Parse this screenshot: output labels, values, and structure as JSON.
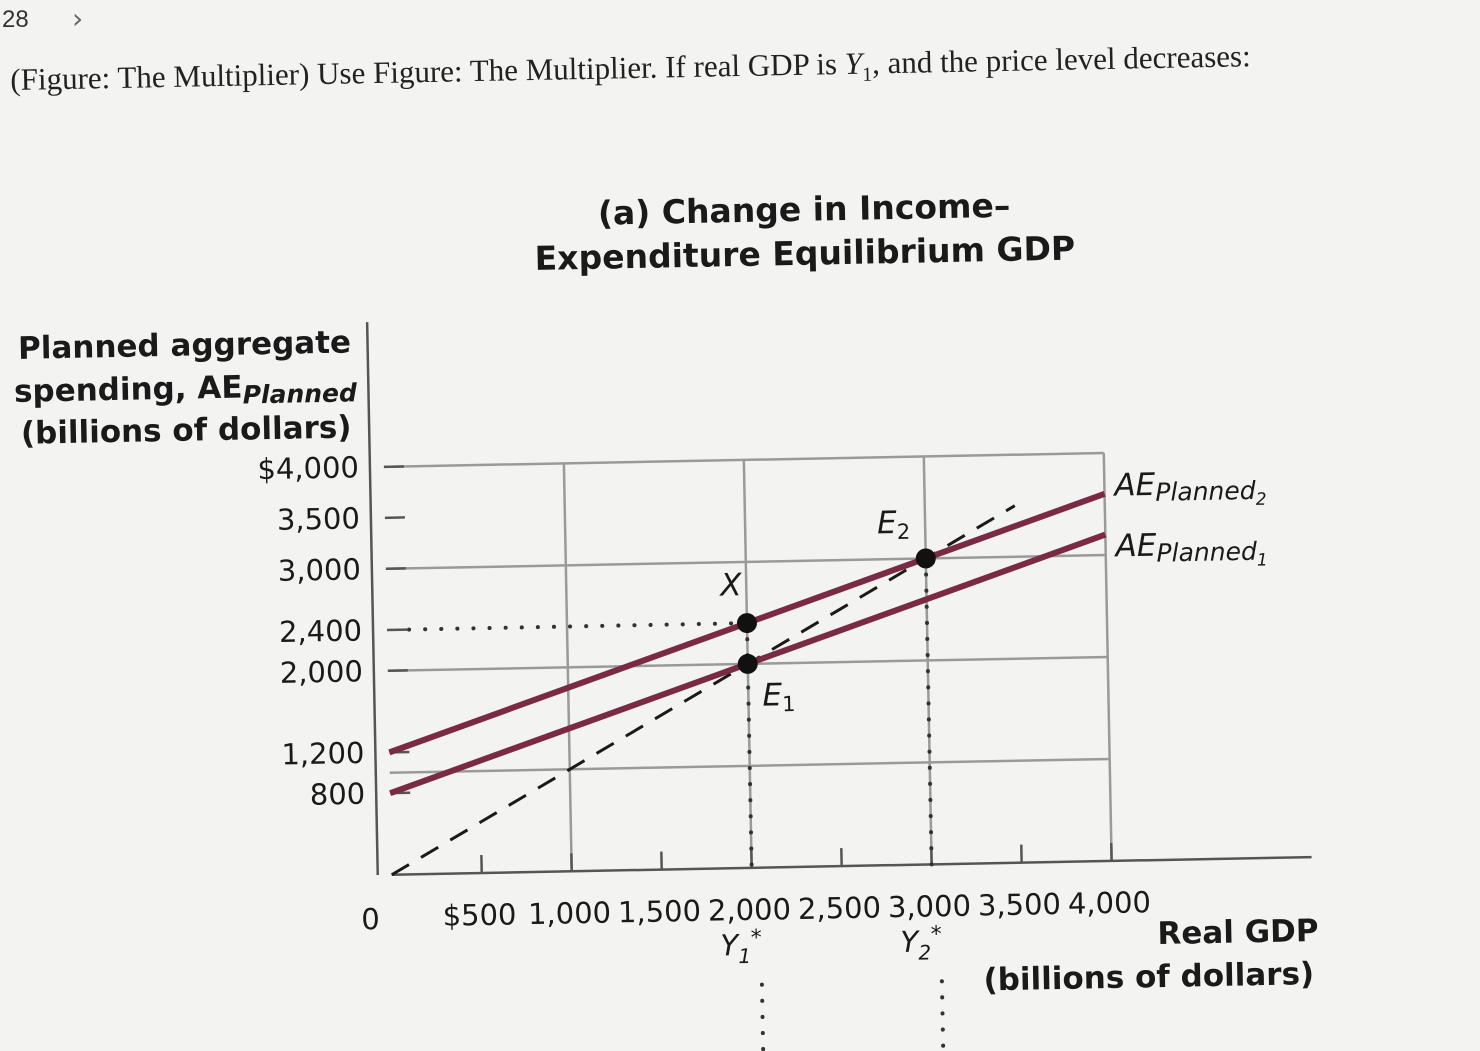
{
  "header": {
    "question_number": "28",
    "next_icon": "chevron-right-icon"
  },
  "question": {
    "prefix": "(Figure: The Multiplier) Use Figure: The Multiplier. If real GDP is ",
    "var": "Y",
    "sub": "1",
    "suffix": ", and the price level decreases:"
  },
  "chart_data": {
    "type": "line",
    "title": [
      "(a) Change in Income–",
      "Expenditure Equilibrium GDP"
    ],
    "ylabel": [
      "Planned aggregate",
      "spending, AE",
      "Planned",
      "(billions of dollars)"
    ],
    "xlabel": [
      "Real GDP",
      "(billions of dollars)"
    ],
    "origin_label": "0",
    "xlim": [
      0,
      4000
    ],
    "ylim": [
      0,
      4000
    ],
    "x_ticks": [
      500,
      1000,
      1500,
      2000,
      2500,
      3000,
      3500,
      4000
    ],
    "x_tick_labels": [
      "$500",
      "1,000",
      "1,500",
      "2,000",
      "2,500",
      "3,000",
      "3,500",
      "4,000"
    ],
    "y_ticks": [
      800,
      1200,
      2000,
      2400,
      3000,
      3500,
      4000
    ],
    "y_tick_labels": [
      "800",
      "1,200",
      "2,000",
      "2,400",
      "3,000",
      "3,500",
      "$4,000"
    ],
    "grid_x": [
      1000,
      2000,
      3000,
      4000
    ],
    "grid_y": [
      1000,
      2000,
      3000,
      4000
    ],
    "series": [
      {
        "name": "AE",
        "name_sub": "Planned",
        "index": "2",
        "intercept": 1200,
        "slope": 0.6,
        "x": [
          0,
          4000
        ],
        "y": [
          1200,
          3600
        ],
        "color": "#7a2a45"
      },
      {
        "name": "AE",
        "name_sub": "Planned",
        "index": "1",
        "intercept": 800,
        "slope": 0.6,
        "x": [
          0,
          4000
        ],
        "y": [
          800,
          3200
        ],
        "color": "#7a2a45"
      }
    ],
    "reference_line": {
      "style": "dashed",
      "x": [
        0,
        4000
      ],
      "y": [
        0,
        4000
      ],
      "color": "#1a1a1a"
    },
    "points": [
      {
        "label": "X",
        "x": 2000,
        "y": 2400
      },
      {
        "label": "E",
        "label_sub": "1",
        "x": 2000,
        "y": 2000
      },
      {
        "label": "E",
        "label_sub": "2",
        "x": 3000,
        "y": 3000
      }
    ],
    "dotted_guides": [
      {
        "from": [
          0,
          2400
        ],
        "to": [
          2000,
          2400
        ]
      },
      {
        "from": [
          2000,
          2400
        ],
        "to": [
          2000,
          0
        ]
      },
      {
        "from": [
          3000,
          3000
        ],
        "to": [
          3000,
          0
        ]
      }
    ],
    "equilibrium_labels": [
      {
        "text": "Y",
        "sub": "1",
        "sup": "*",
        "x": 2000
      },
      {
        "text": "Y",
        "sub": "2",
        "sup": "*",
        "x": 3000
      }
    ],
    "grid": true,
    "legend": "right"
  },
  "colors": {
    "ae_line": "#7a2a45",
    "grid": "#9a9a9a",
    "background": "#f3f3f1"
  }
}
